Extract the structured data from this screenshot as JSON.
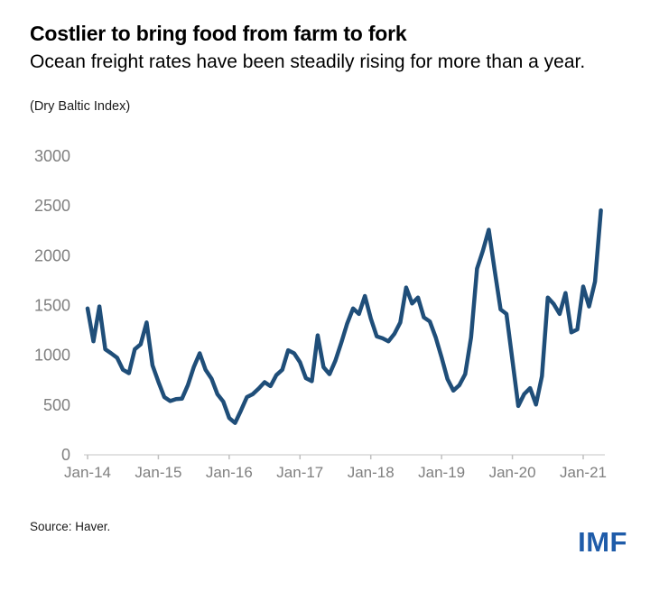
{
  "header": {
    "title": "Costlier to bring food from farm to fork",
    "subtitle": "Ocean freight rates have been steadily rising for more than a year.",
    "unit_note": "(Dry Baltic Index)"
  },
  "footer": {
    "source": "Source: Haver.",
    "logo": "IMF"
  },
  "colors": {
    "line": "#1f4e79",
    "axis_label": "#7f7f7f",
    "axis_line": "#d9d9d9",
    "logo_blue": "#1f5ca9"
  },
  "chart_data": {
    "type": "line",
    "title": "Costlier to bring food from farm to fork",
    "subtitle": "Ocean freight rates have been steadily rising for more than a year.",
    "unit": "(Dry Baltic Index)",
    "frequency": "monthly",
    "start_month": "Jan-2014",
    "end_month": "Apr-2021",
    "x_tick_labels": [
      "Jan-14",
      "Jan-15",
      "Jan-16",
      "Jan-17",
      "Jan-18",
      "Jan-19",
      "Jan-20",
      "Jan-21"
    ],
    "y_ticks": [
      0,
      500,
      1000,
      1500,
      2000,
      2500,
      3000
    ],
    "ylim": [
      0,
      3000
    ],
    "grid": false,
    "legend": false,
    "series": [
      {
        "name": "Baltic Dry Index",
        "values": [
          1470,
          1140,
          1490,
          1060,
          1020,
          975,
          855,
          820,
          1060,
          1110,
          1330,
          900,
          735,
          580,
          540,
          560,
          565,
          700,
          880,
          1020,
          855,
          765,
          610,
          535,
          370,
          320,
          445,
          580,
          610,
          665,
          730,
          690,
          800,
          855,
          1050,
          1020,
          930,
          770,
          740,
          1200,
          880,
          810,
          945,
          1125,
          1320,
          1470,
          1415,
          1595,
          1370,
          1190,
          1170,
          1140,
          1215,
          1330,
          1680,
          1520,
          1580,
          1380,
          1340,
          1180,
          980,
          760,
          645,
          700,
          810,
          1180,
          1870,
          2050,
          2260,
          1850,
          1460,
          1415,
          950,
          490,
          610,
          670,
          505,
          790,
          1580,
          1515,
          1415,
          1625,
          1230,
          1260,
          1690,
          1490,
          1740,
          2455
        ]
      }
    ]
  }
}
